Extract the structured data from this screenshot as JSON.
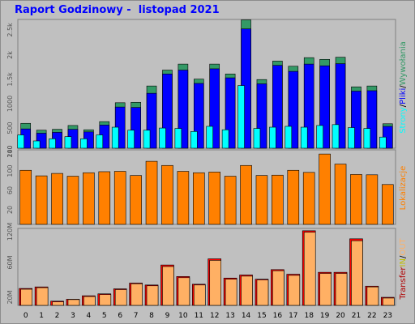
{
  "title": "Raport Godzinowy -  listopad 2021",
  "colors": {
    "background": "#c0c0c0",
    "panel": "#c0c0c0",
    "visits": "#339966",
    "pages": "#0000ff",
    "hits": "#00ffff",
    "bandwidth": "#ff8000",
    "inbound": "#ff0000",
    "outbound": "#ffb064"
  },
  "chart_data": [
    {
      "type": "bar",
      "name": "top",
      "categories": [
        "0",
        "1",
        "2",
        "3",
        "4",
        "5",
        "6",
        "7",
        "8",
        "9",
        "10",
        "11",
        "12",
        "13",
        "14",
        "15",
        "16",
        "17",
        "18",
        "19",
        "20",
        "21",
        "22",
        "23"
      ],
      "series": [
        {
          "name": "Wywołania",
          "values": [
            580,
            420,
            440,
            530,
            430,
            620,
            1060,
            1070,
            1450,
            1820,
            1960,
            1610,
            1960,
            1730,
            2990,
            1600,
            2030,
            1910,
            2110,
            2070,
            2120,
            1430,
            1450,
            570
          ]
        },
        {
          "name": "Pliki",
          "values": [
            450,
            350,
            370,
            440,
            380,
            540,
            960,
            950,
            1280,
            1730,
            1820,
            1510,
            1850,
            1640,
            2780,
            1500,
            1930,
            1790,
            1960,
            1920,
            1970,
            1330,
            1340,
            510
          ]
        },
        {
          "name": "Strony",
          "values": [
            310,
            170,
            220,
            270,
            220,
            310,
            490,
            420,
            420,
            470,
            460,
            390,
            510,
            430,
            1460,
            460,
            490,
            510,
            490,
            530,
            550,
            480,
            460,
            260
          ]
        }
      ],
      "ytick_labels": [
        "500",
        "1000",
        "1.5k",
        "2k",
        "2.5k"
      ],
      "ylim": [
        0,
        3000
      ],
      "legend": [
        "Strony",
        "/",
        "Pliki",
        "/",
        "Wywołania"
      ]
    },
    {
      "type": "bar",
      "name": "middle",
      "categories": [
        "0",
        "1",
        "2",
        "3",
        "4",
        "5",
        "6",
        "7",
        "8",
        "9",
        "10",
        "11",
        "12",
        "13",
        "14",
        "15",
        "16",
        "17",
        "18",
        "19",
        "20",
        "21",
        "22",
        "23"
      ],
      "series": [
        {
          "name": "Lokalizacje",
          "values": [
            156,
            140,
            147,
            139,
            149,
            152,
            153,
            141,
            182,
            170,
            153,
            149,
            151,
            139,
            170,
            141,
            142,
            156,
            150,
            203,
            174,
            144,
            143,
            115
          ]
        }
      ],
      "ytick_labels": [
        "20",
        "60",
        "100",
        "140",
        "200"
      ],
      "ylim": [
        0,
        215
      ],
      "legend": [
        "Lokalizacje"
      ]
    },
    {
      "type": "bar",
      "name": "bottom",
      "categories": [
        "0",
        "1",
        "2",
        "3",
        "4",
        "5",
        "6",
        "7",
        "8",
        "9",
        "10",
        "11",
        "12",
        "13",
        "14",
        "15",
        "16",
        "17",
        "18",
        "19",
        "20",
        "21",
        "22",
        "23"
      ],
      "series": [
        {
          "name": "IN",
          "values": [
            44,
            48,
            11,
            16,
            25,
            30,
            43,
            58,
            53,
            105,
            75,
            55,
            121,
            71,
            79,
            68,
            93,
            81,
            194,
            86,
            86,
            173,
            50,
            21
          ]
        },
        {
          "name": "OUT",
          "values": [
            42,
            46,
            9,
            15,
            23,
            28,
            41,
            56,
            51,
            101,
            72,
            53,
            117,
            68,
            76,
            66,
            90,
            78,
            190,
            83,
            83,
            168,
            48,
            19
          ]
        }
      ],
      "ytick_labels": [
        "20M",
        "60M",
        "120M"
      ],
      "ylim": [
        0,
        200
      ],
      "legend": [
        "Transfer",
        "IN",
        "/",
        "OUT"
      ]
    }
  ]
}
